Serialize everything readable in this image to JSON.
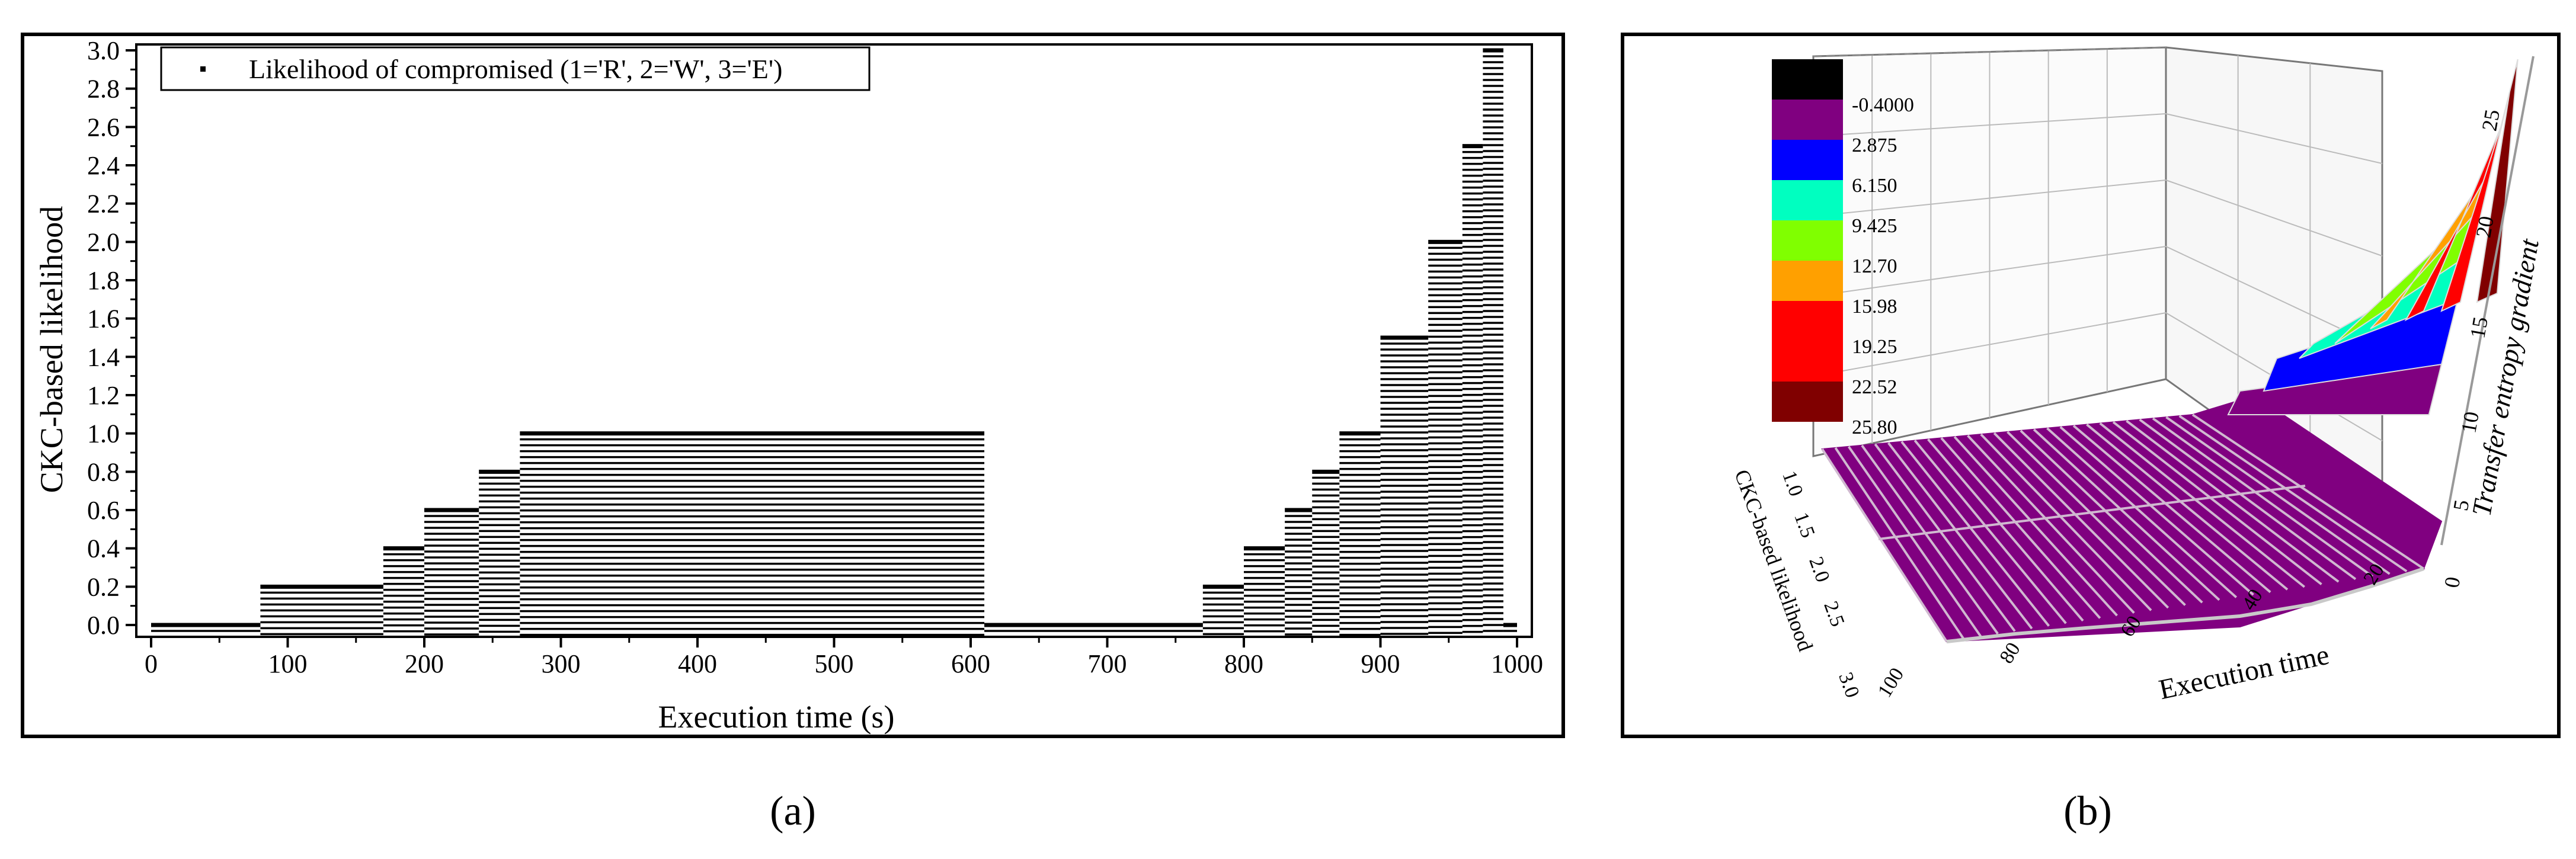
{
  "chart_data": [
    {
      "type": "bar",
      "panel_label": "(a)",
      "xlabel": "Execution time (s)",
      "ylabel": "CKC-based likelihood",
      "xlim": [
        0,
        1000
      ],
      "ylim": [
        0,
        3.0
      ],
      "xticks": [
        0,
        100,
        200,
        300,
        400,
        500,
        600,
        700,
        800,
        900,
        1000
      ],
      "yticks": [
        "0.0",
        "0.2",
        "0.4",
        "0.6",
        "0.8",
        "1.0",
        "1.2",
        "1.4",
        "1.6",
        "1.8",
        "2.0",
        "2.2",
        "2.4",
        "2.6",
        "2.8",
        "3.0"
      ],
      "legend": {
        "position": "top-left",
        "label": "Likelihood of compromised (1='R', 2='W', 3='E')"
      },
      "color": "#000000",
      "segments": [
        {
          "x0": 0,
          "x1": 80,
          "value": 0.0
        },
        {
          "x0": 80,
          "x1": 170,
          "value": 0.2
        },
        {
          "x0": 170,
          "x1": 200,
          "value": 0.4
        },
        {
          "x0": 200,
          "x1": 240,
          "value": 0.6
        },
        {
          "x0": 240,
          "x1": 270,
          "value": 0.8
        },
        {
          "x0": 270,
          "x1": 610,
          "value": 1.0
        },
        {
          "x0": 610,
          "x1": 770,
          "value": 0.0
        },
        {
          "x0": 770,
          "x1": 800,
          "value": 0.2
        },
        {
          "x0": 800,
          "x1": 830,
          "value": 0.4
        },
        {
          "x0": 830,
          "x1": 850,
          "value": 0.6
        },
        {
          "x0": 850,
          "x1": 870,
          "value": 0.8
        },
        {
          "x0": 870,
          "x1": 900,
          "value": 1.0
        },
        {
          "x0": 900,
          "x1": 935,
          "value": 1.5
        },
        {
          "x0": 935,
          "x1": 960,
          "value": 2.0
        },
        {
          "x0": 960,
          "x1": 975,
          "value": 2.5
        },
        {
          "x0": 975,
          "x1": 990,
          "value": 3.0
        },
        {
          "x0": 990,
          "x1": 1000,
          "value": 0.0
        }
      ]
    },
    {
      "type": "surface3d",
      "panel_label": "(b)",
      "xlabel": "Execution time",
      "ylabel": "CKC-based likelihood",
      "zlabel": "Transfer entropy gradient",
      "x_ticks": [
        "100",
        "80",
        "60",
        "40",
        "20"
      ],
      "y_ticks": [
        "1.0",
        "1.5",
        "2.0",
        "2.5",
        "3.0"
      ],
      "z_ticks": [
        "0",
        "5",
        "10",
        "15",
        "20",
        "25"
      ],
      "legend_levels": [
        {
          "label": "",
          "color": "#000000"
        },
        {
          "label": "-0.4000",
          "color": "#800080"
        },
        {
          "label": "2.875",
          "color": "#0000ff"
        },
        {
          "label": "6.150",
          "color": "#00ffc0"
        },
        {
          "label": "9.425",
          "color": "#80ff00"
        },
        {
          "label": "12.70",
          "color": "#ffa000"
        },
        {
          "label": "15.98",
          "color": "#ff0000"
        },
        {
          "label": "19.25",
          "color": "#ff0000"
        },
        {
          "label": "22.52",
          "color": "#800000"
        },
        {
          "label": "25.80",
          "color": ""
        }
      ]
    }
  ]
}
